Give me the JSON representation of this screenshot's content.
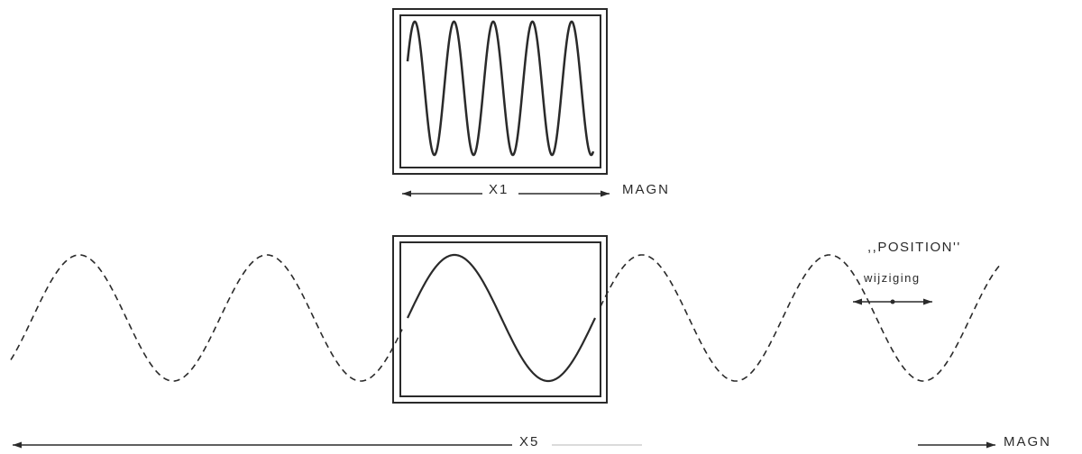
{
  "labels": {
    "top_range": "X1",
    "top_range_unit": "MAGN",
    "bottom_range": "X5",
    "bottom_range_unit": "MAGN",
    "position_title": ",,POSITION''",
    "position_sub": "wijziging"
  },
  "waves": {
    "top_cycles": 5,
    "bottom_cycles_total": 6,
    "bottom_cycles_visible_in_screen": 1
  },
  "colors": {
    "line": "#2a2a2a",
    "background": "#ffffff"
  }
}
